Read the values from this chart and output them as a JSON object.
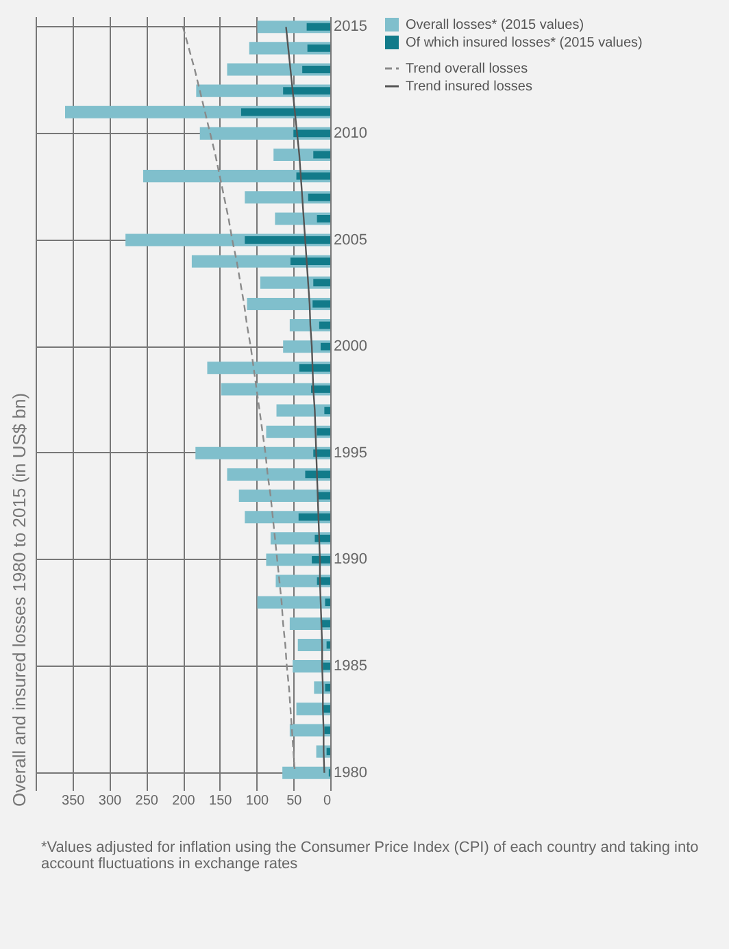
{
  "chart_data": {
    "type": "bar",
    "orientation": "horizontal",
    "title": "Overall and insured losses 1980 to 2015 (in US$ bn)",
    "categories": [
      "2015",
      null,
      null,
      null,
      null,
      "2010",
      null,
      null,
      null,
      null,
      "2005",
      null,
      null,
      null,
      null,
      "2000",
      null,
      null,
      null,
      null,
      "1995",
      null,
      null,
      null,
      null,
      "1990",
      null,
      null,
      null,
      null,
      "1985",
      null,
      null,
      null,
      null,
      "1980"
    ],
    "series": [
      {
        "name": "Overall losses* (2015 values)",
        "color": "#80bfcc",
        "values": [
          99,
          110,
          140,
          182,
          360,
          177,
          77,
          254,
          116,
          75,
          278,
          188,
          95,
          113,
          55,
          64,
          167,
          148,
          73,
          87,
          183,
          140,
          124,
          116,
          81,
          87,
          74,
          99,
          55,
          44,
          51,
          22,
          46,
          55,
          19,
          65
        ]
      },
      {
        "name": "Of which insured losses* (2015 values)",
        "color": "#127b8a",
        "values": [
          32,
          31,
          38,
          64,
          121,
          50,
          23,
          46,
          30,
          18,
          116,
          54,
          23,
          24,
          15,
          13,
          42,
          26,
          8,
          18,
          23,
          34,
          17,
          43,
          21,
          25,
          18,
          7,
          13,
          5,
          10,
          7,
          10,
          8,
          5,
          2
        ]
      },
      {
        "name": "Trend overall losses",
        "type": "line",
        "line_style": "dashed",
        "color": "#8a8a8a",
        "values": [
          200,
          192,
          184,
          177,
          170,
          163,
          156,
          150,
          144,
          138,
          133,
          127,
          122,
          117,
          113,
          108,
          104,
          100,
          96,
          92,
          88,
          85,
          81,
          78,
          75,
          72,
          69,
          66,
          64,
          61,
          59,
          56,
          54,
          52,
          50,
          48
        ]
      },
      {
        "name": "Trend insured losses",
        "type": "line",
        "line_style": "solid",
        "color": "#555555",
        "values": [
          60,
          57,
          54,
          51,
          48,
          45,
          42,
          40,
          38,
          36,
          34,
          32,
          30,
          28,
          27,
          25,
          24,
          23,
          21,
          20,
          19,
          18,
          17,
          16,
          15,
          14,
          14,
          13,
          12,
          11,
          11,
          10,
          10,
          9,
          9,
          8
        ]
      }
    ],
    "xlim": [
      400,
      0
    ],
    "xticks": [
      {
        "value": 400,
        "label": null
      },
      350,
      300,
      250,
      200,
      150,
      100,
      50,
      0
    ],
    "grid": true,
    "legend": "right",
    "marker": "none",
    "annotations": [
      "*Values adjusted for inflation using the Consumer Price Index (CPI) of each country and taking into account fluctuations in exchange rates"
    ]
  }
}
